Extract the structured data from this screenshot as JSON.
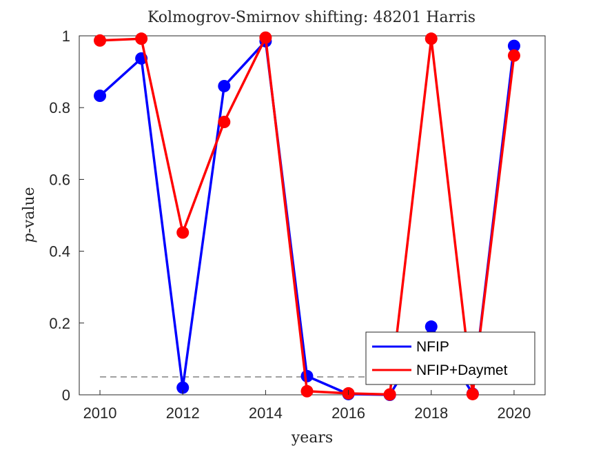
{
  "chart_data": {
    "type": "line",
    "title": "Kolmogrov-Smirnov shifting: 48201 Harris",
    "xlabel": "years",
    "ylabel_italic": "p",
    "ylabel_rest": "-value",
    "x": [
      2010,
      2011,
      2012,
      2013,
      2014,
      2015,
      2016,
      2017,
      2018,
      2019,
      2020
    ],
    "xlim": [
      2009.5,
      2020.75
    ],
    "ylim": [
      0,
      1
    ],
    "xticks": [
      2010,
      2012,
      2014,
      2016,
      2018,
      2020
    ],
    "yticks": [
      0,
      0.2,
      0.4,
      0.6,
      0.8,
      1
    ],
    "ytick_labels": [
      "0",
      "0.2",
      "0.4",
      "0.6",
      "0.8",
      "1"
    ],
    "reference_line": {
      "y": 0.05,
      "x_from": 2010,
      "x_to": 2020,
      "style": "dashed",
      "color": "#808080"
    },
    "series": [
      {
        "name": "NFIP",
        "color": "#0000ff",
        "values": [
          0.833,
          0.937,
          0.02,
          0.86,
          0.985,
          0.052,
          0.002,
          0.0,
          0.19,
          0.003,
          0.972
        ]
      },
      {
        "name": "NFIP+Daymet",
        "color": "#ff0000",
        "values": [
          0.987,
          0.992,
          0.452,
          0.76,
          0.995,
          0.01,
          0.004,
          0.001,
          0.992,
          0.002,
          0.945
        ]
      }
    ],
    "legend_position": "bottom-right",
    "grid": false
  }
}
